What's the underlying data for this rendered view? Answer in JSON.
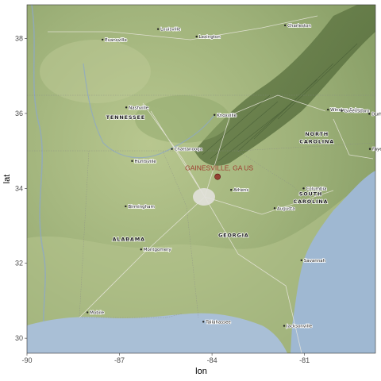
{
  "map": {
    "x_axis": {
      "title": "lon",
      "range": [
        -90,
        -78.7
      ],
      "ticks": [
        {
          "value": -90,
          "label": "-90"
        },
        {
          "value": -87,
          "label": "-87"
        },
        {
          "value": -84,
          "label": "-84"
        },
        {
          "value": -81,
          "label": "-81"
        }
      ]
    },
    "y_axis": {
      "title": "lat",
      "range": [
        29.6,
        38.9
      ],
      "ticks": [
        {
          "value": 30,
          "label": "30"
        },
        {
          "value": 32,
          "label": "32"
        },
        {
          "value": 34,
          "label": "34"
        },
        {
          "value": 36,
          "label": "36"
        },
        {
          "value": 38,
          "label": "38"
        }
      ]
    },
    "marker": {
      "label": "GAINESVILLE, GA US",
      "lon": -83.82,
      "lat": 34.31,
      "color": "#8b1a1a",
      "label_color": "#9e3a2e"
    },
    "states": [
      {
        "name": "TENNESSEE",
        "lon": -86.8,
        "lat": 35.85
      },
      {
        "name": "ALABAMA",
        "lon": -86.7,
        "lat": 32.6
      },
      {
        "name": "GEORGIA",
        "lon": -83.3,
        "lat": 32.7
      },
      {
        "name": "NORTH",
        "lon": -80.6,
        "lat": 35.4
      },
      {
        "name": "CAROLINA",
        "lon": -80.6,
        "lat": 35.2
      },
      {
        "name": "SOUTH",
        "lon": -80.8,
        "lat": 33.8
      },
      {
        "name": "CAROLINA",
        "lon": -80.8,
        "lat": 33.6
      }
    ],
    "cities": [
      {
        "name": "Evansville",
        "lon": -87.55,
        "lat": 37.97
      },
      {
        "name": "Louisville",
        "lon": -85.75,
        "lat": 38.25
      },
      {
        "name": "Lexington",
        "lon": -84.5,
        "lat": 38.05
      },
      {
        "name": "Charleston",
        "lon": -81.63,
        "lat": 38.35
      },
      {
        "name": "Nashville",
        "lon": -86.78,
        "lat": 36.16
      },
      {
        "name": "Knoxville",
        "lon": -83.92,
        "lat": 35.96
      },
      {
        "name": "Winston-Salem",
        "lon": -80.24,
        "lat": 36.1
      },
      {
        "name": "Greensboro",
        "lon": -79.79,
        "lat": 36.07
      },
      {
        "name": "Durham",
        "lon": -78.9,
        "lat": 35.99
      },
      {
        "name": "Chattanooga",
        "lon": -85.3,
        "lat": 35.05
      },
      {
        "name": "Huntsville",
        "lon": -86.59,
        "lat": 34.73
      },
      {
        "name": "Fayetteville",
        "lon": -78.88,
        "lat": 35.05
      },
      {
        "name": "Athens",
        "lon": -83.38,
        "lat": 33.96
      },
      {
        "name": "Columbia",
        "lon": -81.03,
        "lat": 34.0
      },
      {
        "name": "Birmingham",
        "lon": -86.8,
        "lat": 33.52
      },
      {
        "name": "Augusta",
        "lon": -81.97,
        "lat": 33.47
      },
      {
        "name": "Montgomery",
        "lon": -86.3,
        "lat": 32.37
      },
      {
        "name": "Savannah",
        "lon": -81.1,
        "lat": 32.08
      },
      {
        "name": "Mobile",
        "lon": -88.04,
        "lat": 30.69
      },
      {
        "name": "Tallahassee",
        "lon": -84.28,
        "lat": 30.44
      },
      {
        "name": "Jacksonville",
        "lon": -81.66,
        "lat": 30.33
      }
    ]
  }
}
